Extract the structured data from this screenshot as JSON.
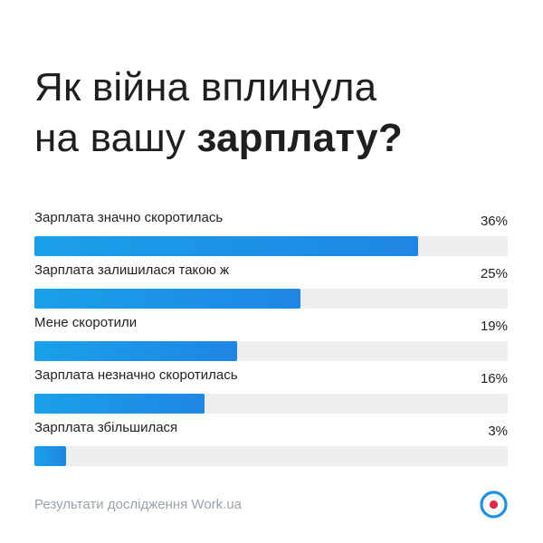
{
  "title": {
    "line1": "Як війна вплинула",
    "line2_regular": "на вашу ",
    "line2_bold": "зарплату?"
  },
  "chart_data": {
    "type": "bar",
    "orientation": "horizontal",
    "categories": [
      "Зарплата значно скоротилась",
      "Зарплата залишилася такою ж",
      "Мене скоротили",
      "Зарплата незначно скоротилась",
      "Зарплата збільшилася"
    ],
    "values": [
      36,
      25,
      19,
      16,
      3
    ],
    "value_labels": [
      "36%",
      "25%",
      "19%",
      "16%",
      "3%"
    ],
    "xlim": [
      0,
      100
    ],
    "grid": false,
    "colors": {
      "bar": "#1e90e8",
      "track": "#eeeeef"
    }
  },
  "footer": {
    "source": "Результати дослідження Work.ua",
    "logo_icon": "work-ua-logo-icon",
    "logo_colors": {
      "ring": "#1e90e8",
      "center": "#e8264e"
    }
  }
}
